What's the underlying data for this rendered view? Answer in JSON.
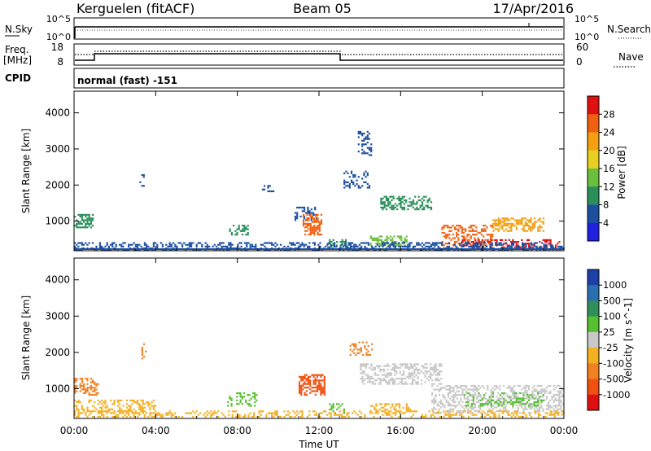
{
  "header": {
    "station": "Kerguelen (fitACF)",
    "beam": "Beam 05",
    "date": "17/Apr/2016"
  },
  "aux_panel": {
    "nsky_label": "N.Sky",
    "nsky_ticks": [
      "10^5",
      "10^0"
    ],
    "nsearch_label": "N.Search",
    "nsearch_ticks": [
      "10^5",
      "10^0"
    ],
    "freq_label_1": "Freq.",
    "freq_label_2": "[MHz]",
    "freq_ticks": [
      "18",
      "8"
    ],
    "nave_label": "Nave",
    "nave_ticks": [
      "60",
      "0"
    ],
    "cpid_label": "CPID",
    "cpid_text": "normal (fast) -151"
  },
  "x_axis": {
    "ticks": [
      "00:00",
      "04:00",
      "08:00",
      "12:00",
      "16:00",
      "20:00",
      "00:00"
    ],
    "label": "Time UT"
  },
  "chart_data": [
    {
      "type": "heatmap",
      "title": "",
      "quantity": "Power",
      "ylabel": "Slant Range [km]",
      "xlabel": "Time UT",
      "xlim_hours": [
        0,
        24
      ],
      "ylim_km": [
        180,
        4600
      ],
      "y_ticks": [
        "1000",
        "2000",
        "3000",
        "4000"
      ],
      "colorbar_label": "Power [dB]",
      "colorbar_ticks": [
        "28",
        "24",
        "20",
        "16",
        "12",
        "8",
        "4"
      ],
      "colorbar_colors": [
        "#2020e0",
        "#1c4fa0",
        "#2a8f5a",
        "#6cbf3c",
        "#e8d020",
        "#f5a010",
        "#f06010",
        "#e01010"
      ],
      "scatter_regions": [
        {
          "h": [
            0.0,
            1.0
          ],
          "km": [
            800,
            1200
          ],
          "color": "#2a8f5a",
          "density": 0.6
        },
        {
          "h": [
            3.2,
            3.5
          ],
          "km": [
            1900,
            2300
          ],
          "color": "#1c4fa0",
          "density": 0.3
        },
        {
          "h": [
            7.6,
            8.6
          ],
          "km": [
            600,
            900
          ],
          "color": "#2a8f5a",
          "density": 0.4
        },
        {
          "h": [
            9.2,
            9.8
          ],
          "km": [
            1800,
            2000
          ],
          "color": "#1c4fa0",
          "density": 0.4
        },
        {
          "h": [
            10.8,
            11.9
          ],
          "km": [
            1000,
            1400
          ],
          "color": "#1c4fa0",
          "density": 0.45
        },
        {
          "h": [
            11.2,
            12.2
          ],
          "km": [
            600,
            1200
          ],
          "color": "#f06010",
          "density": 0.55
        },
        {
          "h": [
            12.4,
            13.5
          ],
          "km": [
            200,
            500
          ],
          "color": "#2a8f5a",
          "density": 0.4
        },
        {
          "h": [
            13.2,
            14.5
          ],
          "km": [
            1900,
            2400
          ],
          "color": "#1c4fa0",
          "density": 0.35
        },
        {
          "h": [
            13.9,
            14.6
          ],
          "km": [
            2800,
            3500
          ],
          "color": "#1c4fa0",
          "density": 0.3
        },
        {
          "h": [
            15.0,
            17.5
          ],
          "km": [
            1300,
            1700
          ],
          "color": "#2a8f5a",
          "density": 0.5
        },
        {
          "h": [
            14.5,
            16.3
          ],
          "km": [
            300,
            600
          ],
          "color": "#6cbf3c",
          "density": 0.5
        },
        {
          "h": [
            18.0,
            20.5
          ],
          "km": [
            300,
            900
          ],
          "color": "#f06010",
          "density": 0.4
        },
        {
          "h": [
            20.5,
            23.0
          ],
          "km": [
            700,
            1100
          ],
          "color": "#f5a010",
          "density": 0.5
        },
        {
          "h": [
            19.0,
            24.0
          ],
          "km": [
            180,
            500
          ],
          "color": "#e01010",
          "density": 0.35
        },
        {
          "h": [
            0.0,
            24.0
          ],
          "km": [
            180,
            420
          ],
          "color": "#1c4fa0",
          "density": 0.45
        }
      ]
    },
    {
      "type": "heatmap",
      "title": "",
      "quantity": "Velocity",
      "ylabel": "Slant Range [km]",
      "xlabel": "Time UT",
      "xlim_hours": [
        0,
        24
      ],
      "ylim_km": [
        180,
        4600
      ],
      "y_ticks": [
        "1000",
        "2000",
        "3000",
        "4000"
      ],
      "colorbar_label": "Velocity [m s^-1]",
      "colorbar_ticks": [
        "1000",
        "500",
        "100",
        "25",
        "-25",
        "-100",
        "-500",
        "-1000"
      ],
      "colorbar_colors": [
        "#1c3fa8",
        "#2a6fb0",
        "#2f8f5a",
        "#56c030",
        "#c8c8c8",
        "#f5b020",
        "#f08020",
        "#f05010",
        "#e01010"
      ],
      "scatter_regions": [
        {
          "h": [
            0.0,
            1.2
          ],
          "km": [
            800,
            1300
          ],
          "color": "#f08020",
          "density": 0.5
        },
        {
          "h": [
            0.0,
            4.0
          ],
          "km": [
            300,
            700
          ],
          "color": "#f5b020",
          "density": 0.35
        },
        {
          "h": [
            3.3,
            3.6
          ],
          "km": [
            1800,
            2300
          ],
          "color": "#f08020",
          "density": 0.3
        },
        {
          "h": [
            7.5,
            9.0
          ],
          "km": [
            500,
            900
          ],
          "color": "#56c030",
          "density": 0.3
        },
        {
          "h": [
            11.0,
            12.3
          ],
          "km": [
            800,
            1400
          ],
          "color": "#f05010",
          "density": 0.6
        },
        {
          "h": [
            12.4,
            13.3
          ],
          "km": [
            300,
            600
          ],
          "color": "#56c030",
          "density": 0.3
        },
        {
          "h": [
            13.5,
            14.6
          ],
          "km": [
            1900,
            2300
          ],
          "color": "#f08020",
          "density": 0.3
        },
        {
          "h": [
            14.0,
            18.0
          ],
          "km": [
            1100,
            1700
          ],
          "color": "#c8c8c8",
          "density": 0.5
        },
        {
          "h": [
            14.5,
            16.5
          ],
          "km": [
            300,
            600
          ],
          "color": "#f5b020",
          "density": 0.45
        },
        {
          "h": [
            17.5,
            24.0
          ],
          "km": [
            300,
            1100
          ],
          "color": "#c8c8c8",
          "density": 0.45
        },
        {
          "h": [
            19.0,
            23.0
          ],
          "km": [
            500,
            900
          ],
          "color": "#56c030",
          "density": 0.25
        },
        {
          "h": [
            0.0,
            24.0
          ],
          "km": [
            180,
            400
          ],
          "color": "#f5b020",
          "density": 0.35
        }
      ]
    }
  ]
}
